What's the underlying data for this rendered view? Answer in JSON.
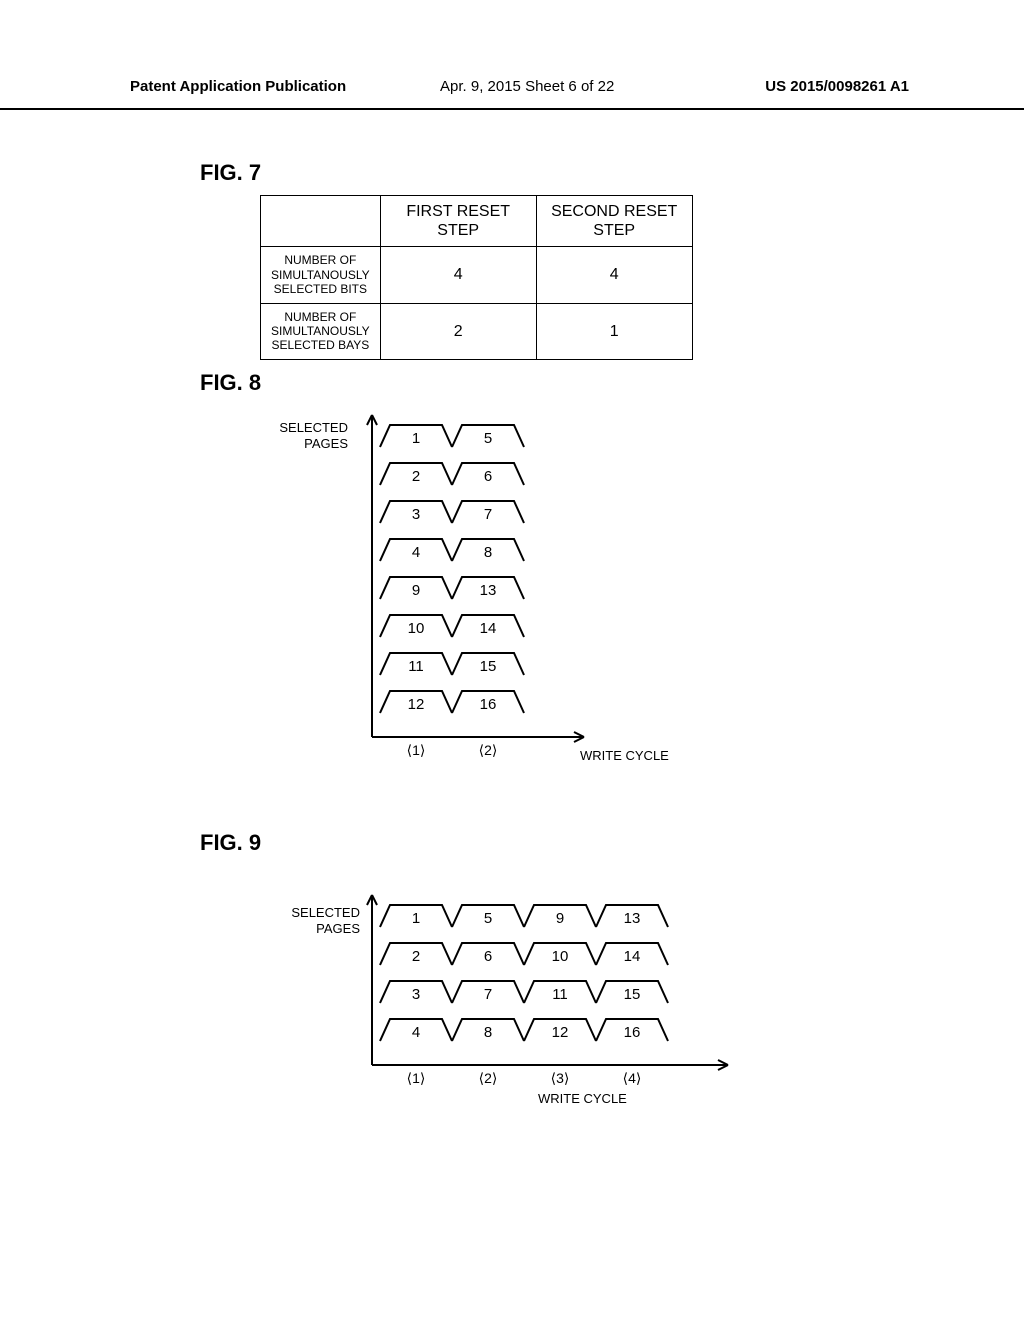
{
  "header": {
    "left": "Patent Application Publication",
    "mid": "Apr. 9, 2015 Sheet 6 of 22",
    "right": "US 2015/0098261 A1"
  },
  "fig7": {
    "label": "FIG. 7",
    "cols": [
      "",
      "FIRST RESET STEP",
      "SECOND RESET STEP"
    ],
    "rows": [
      {
        "label": "NUMBER OF\nSIMULTANOUSLY\nSELECTED BITS",
        "first": "4",
        "second": "4"
      },
      {
        "label": "NUMBER OF\nSIMULTANOUSLY\nSELECTED BAYS",
        "first": "2",
        "second": "1"
      }
    ]
  },
  "fig8": {
    "label": "FIG. 8",
    "ylabel": "SELECTED\nPAGES",
    "xlabel": "WRITE CYCLE",
    "cycles": [
      "⟨1⟩",
      "⟨2⟩"
    ],
    "rows": [
      [
        "1",
        "5"
      ],
      [
        "2",
        "6"
      ],
      [
        "3",
        "7"
      ],
      [
        "4",
        "8"
      ],
      [
        "9",
        "13"
      ],
      [
        "10",
        "14"
      ],
      [
        "11",
        "15"
      ],
      [
        "12",
        "16"
      ]
    ]
  },
  "fig9": {
    "label": "FIG. 9",
    "ylabel": "SELECTED\nPAGES",
    "xlabel": "WRITE CYCLE",
    "cycles": [
      "⟨1⟩",
      "⟨2⟩",
      "⟨3⟩",
      "⟨4⟩"
    ],
    "rows": [
      [
        "1",
        "5",
        "9",
        "13"
      ],
      [
        "2",
        "6",
        "10",
        "14"
      ],
      [
        "3",
        "7",
        "11",
        "15"
      ],
      [
        "4",
        "8",
        "12",
        "16"
      ]
    ]
  },
  "style": {
    "bg": "#ffffff",
    "stroke": "#000000",
    "pulse_width": 72,
    "pulse_height": 22,
    "fig8_row_gap": 38,
    "fig9_row_gap": 38,
    "stroke_width": 2
  }
}
